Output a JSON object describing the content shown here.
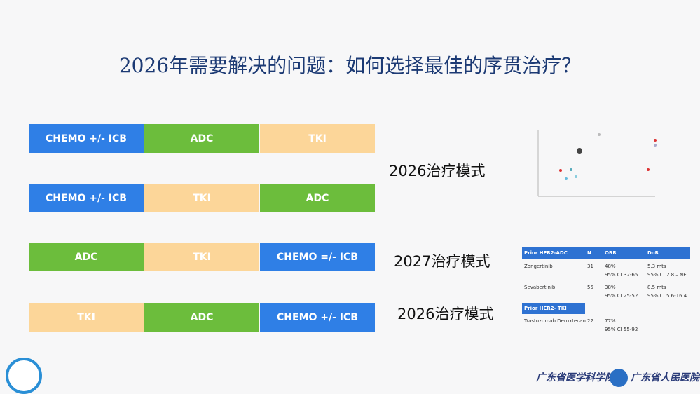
{
  "title": "2026年需要解决的问题：如何选择最佳的序贯治疗？",
  "sequences": [
    {
      "label": "2026治疗模式",
      "steps": [
        {
          "text": "CHEMO +/- ICB",
          "color": "#2f7fe6"
        },
        {
          "text": "ADC",
          "color": "#6cbd3c"
        },
        {
          "text": "TKI",
          "color": "#fcd699"
        }
      ]
    },
    {
      "label": null,
      "steps": [
        {
          "text": "CHEMO +/- ICB",
          "color": "#2f7fe6"
        },
        {
          "text": "TKI",
          "color": "#fcd699"
        },
        {
          "text": "ADC",
          "color": "#6cbd3c"
        }
      ]
    },
    {
      "label": "2027治疗模式",
      "steps": [
        {
          "text": "ADC",
          "color": "#6cbd3c"
        },
        {
          "text": "TKI",
          "color": "#fcd699"
        },
        {
          "text": "CHEMO =/- ICB",
          "color": "#2f7fe6"
        }
      ]
    },
    {
      "label": "2026治疗模式",
      "steps": [
        {
          "text": "TKI",
          "color": "#fcd699"
        },
        {
          "text": "ADC",
          "color": "#6cbd3c"
        },
        {
          "text": "CHEMO +/- ICB",
          "color": "#2f7fe6"
        }
      ]
    }
  ],
  "table": {
    "header": [
      "Prior HER2-ADC",
      "N",
      "ORR",
      "DoR"
    ],
    "rows": [
      [
        "Zongertinib",
        "31",
        "48%\n95% CI 32-65",
        "5.3 mts\n95% CI 2.8 – NE"
      ],
      [
        "Sevabertinib",
        "55",
        "38%\n95% CI 25-52",
        "8.5 mts\n95% CI 5.6-16.4"
      ]
    ],
    "section": "Prior HER2- TKI",
    "rows2": [
      [
        "Trastuzumab Deruxtecan",
        "22",
        "77%\n95% CI 55-92",
        ""
      ]
    ]
  },
  "footer": {
    "org1": "广东省医学科学院",
    "org2": "广东省人民医院"
  }
}
